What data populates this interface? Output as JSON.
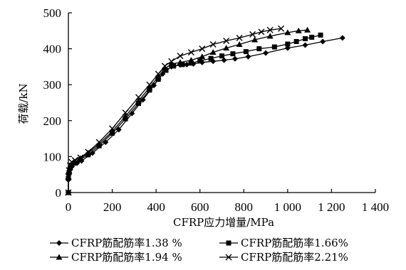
{
  "chart_data": {
    "type": "line",
    "title": "",
    "xlabel": "CFRP应力增量/MPa",
    "ylabel": "荷载/kN",
    "xlim": [
      0,
      1400
    ],
    "ylim": [
      0,
      500
    ],
    "x_ticks": [
      0,
      200,
      400,
      600,
      800,
      1000,
      1200,
      1400
    ],
    "x_tick_labels": [
      "0",
      "200",
      "400",
      "600",
      "800",
      "1 000",
      "1 200",
      "1 400"
    ],
    "y_ticks": [
      0,
      100,
      200,
      300,
      400,
      500
    ],
    "y_tick_labels": [
      "0",
      "100",
      "200",
      "300",
      "400",
      "500"
    ],
    "grid": false,
    "legend_position": "bottom",
    "series": [
      {
        "name": "CFRP筋配筋率1.38 %",
        "marker": "diamond",
        "points": [
          [
            0,
            0
          ],
          [
            0,
            35
          ],
          [
            2,
            50
          ],
          [
            5,
            62
          ],
          [
            10,
            72
          ],
          [
            20,
            78
          ],
          [
            40,
            82
          ],
          [
            60,
            88
          ],
          [
            110,
            110
          ],
          [
            170,
            140
          ],
          [
            230,
            175
          ],
          [
            290,
            220
          ],
          [
            340,
            258
          ],
          [
            390,
            298
          ],
          [
            430,
            330
          ],
          [
            470,
            350
          ],
          [
            510,
            355
          ],
          [
            540,
            356
          ],
          [
            570,
            358
          ],
          [
            610,
            362
          ],
          [
            660,
            365
          ],
          [
            710,
            368
          ],
          [
            760,
            372
          ],
          [
            820,
            378
          ],
          [
            900,
            388
          ],
          [
            1000,
            402
          ],
          [
            1080,
            410
          ],
          [
            1160,
            420
          ],
          [
            1250,
            430
          ]
        ]
      },
      {
        "name": "CFRP筋配筋率1.66%",
        "marker": "square",
        "points": [
          [
            0,
            0
          ],
          [
            0,
            40
          ],
          [
            3,
            55
          ],
          [
            8,
            68
          ],
          [
            15,
            76
          ],
          [
            30,
            82
          ],
          [
            55,
            92
          ],
          [
            90,
            105
          ],
          [
            140,
            130
          ],
          [
            200,
            165
          ],
          [
            260,
            205
          ],
          [
            320,
            248
          ],
          [
            370,
            285
          ],
          [
            410,
            315
          ],
          [
            445,
            340
          ],
          [
            480,
            352
          ],
          [
            520,
            356
          ],
          [
            560,
            360
          ],
          [
            600,
            366
          ],
          [
            650,
            373
          ],
          [
            700,
            380
          ],
          [
            750,
            386
          ],
          [
            810,
            392
          ],
          [
            870,
            400
          ],
          [
            940,
            405
          ],
          [
            1000,
            413
          ],
          [
            1040,
            420
          ],
          [
            1080,
            428
          ],
          [
            1110,
            432
          ],
          [
            1150,
            438
          ]
        ]
      },
      {
        "name": "CFRP筋配筋率1.94 %",
        "marker": "triangle",
        "points": [
          [
            0,
            0
          ],
          [
            0,
            42
          ],
          [
            3,
            58
          ],
          [
            8,
            70
          ],
          [
            15,
            78
          ],
          [
            30,
            85
          ],
          [
            55,
            95
          ],
          [
            90,
            110
          ],
          [
            140,
            135
          ],
          [
            200,
            170
          ],
          [
            260,
            212
          ],
          [
            320,
            255
          ],
          [
            370,
            292
          ],
          [
            410,
            322
          ],
          [
            440,
            345
          ],
          [
            470,
            358
          ],
          [
            510,
            362
          ],
          [
            560,
            368
          ],
          [
            610,
            378
          ],
          [
            660,
            390
          ],
          [
            720,
            402
          ],
          [
            780,
            412
          ],
          [
            850,
            425
          ],
          [
            920,
            435
          ],
          [
            1000,
            445
          ],
          [
            1050,
            450
          ],
          [
            1090,
            452
          ]
        ]
      },
      {
        "name": "CFRP筋配筋率2.21%",
        "marker": "x",
        "points": [
          [
            0,
            0
          ],
          [
            0,
            45
          ],
          [
            3,
            62
          ],
          [
            8,
            75
          ],
          [
            15,
            85
          ],
          [
            30,
            90
          ],
          [
            55,
            97
          ],
          [
            90,
            113
          ],
          [
            140,
            140
          ],
          [
            200,
            178
          ],
          [
            260,
            222
          ],
          [
            320,
            265
          ],
          [
            370,
            300
          ],
          [
            410,
            330
          ],
          [
            440,
            352
          ],
          [
            470,
            365
          ],
          [
            510,
            380
          ],
          [
            560,
            390
          ],
          [
            610,
            400
          ],
          [
            660,
            412
          ],
          [
            720,
            422
          ],
          [
            780,
            430
          ],
          [
            840,
            440
          ],
          [
            880,
            447
          ],
          [
            920,
            452
          ],
          [
            970,
            456
          ]
        ]
      }
    ]
  }
}
